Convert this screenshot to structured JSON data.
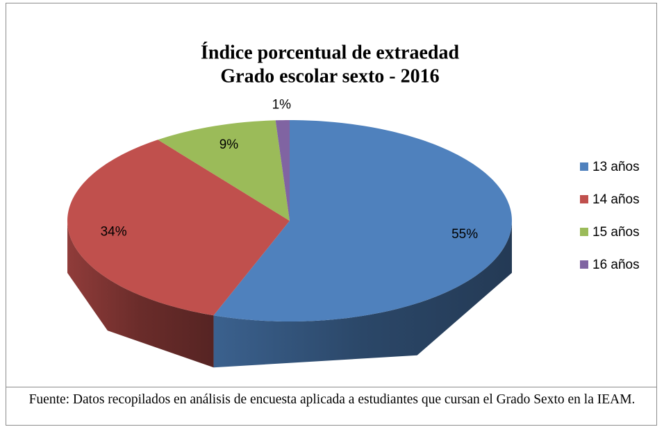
{
  "chart_data": {
    "type": "pie3d",
    "title": "Índice porcentual de extraedad",
    "subtitle": "Grado escolar sexto - 2016",
    "categories": [
      "13 años",
      "14 años",
      "15 años",
      "16 años"
    ],
    "values": [
      55,
      34,
      9,
      1
    ],
    "value_labels": [
      "55%",
      "34%",
      "9%",
      "1%"
    ],
    "colors": [
      "#4f81bd",
      "#c0504d",
      "#9bbb59",
      "#8064a2"
    ],
    "legend": "right"
  },
  "caption": "Fuente: Datos recopilados en análisis de encuesta aplicada a estudiantes que cursan el Grado Sexto en la IEAM."
}
